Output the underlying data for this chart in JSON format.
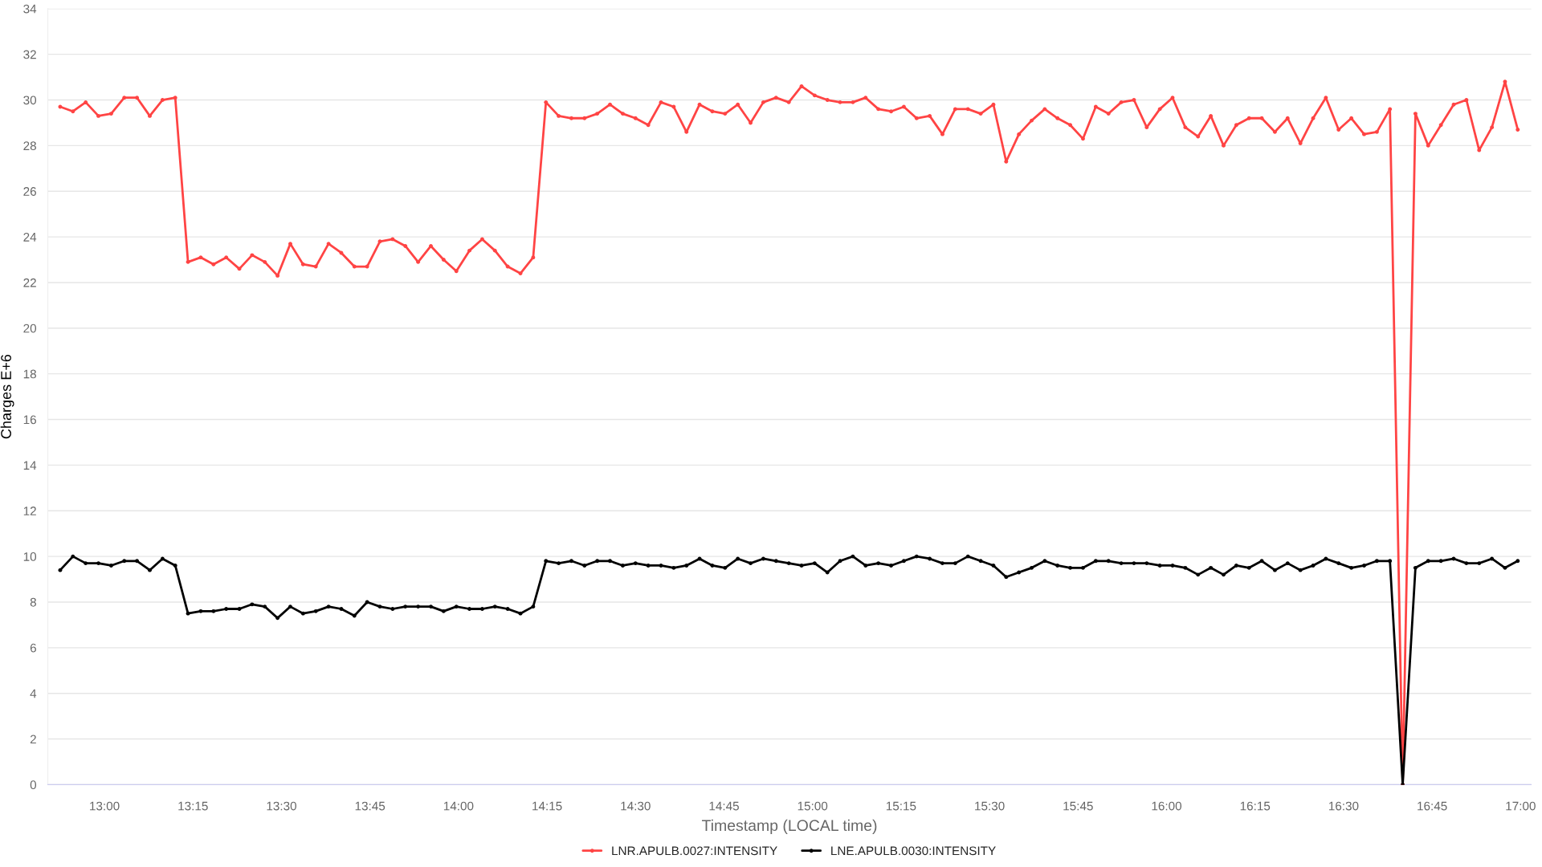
{
  "chart_data": {
    "type": "line",
    "xlabel": "Timestamp (LOCAL time)",
    "ylabel": "Charges E+6",
    "x": [
      12.875,
      12.911,
      12.947,
      12.983,
      13.019,
      13.056,
      13.092,
      13.128,
      13.164,
      13.2,
      13.236,
      13.272,
      13.308,
      13.344,
      13.381,
      13.417,
      13.453,
      13.489,
      13.525,
      13.561,
      13.597,
      13.633,
      13.669,
      13.706,
      13.742,
      13.778,
      13.814,
      13.85,
      13.886,
      13.922,
      13.958,
      13.994,
      14.031,
      14.067,
      14.103,
      14.139,
      14.175,
      14.211,
      14.247,
      14.283,
      14.319,
      14.356,
      14.392,
      14.428,
      14.464,
      14.5,
      14.536,
      14.572,
      14.608,
      14.644,
      14.681,
      14.717,
      14.753,
      14.789,
      14.825,
      14.861,
      14.897,
      14.933,
      14.969,
      15.006,
      15.042,
      15.078,
      15.114,
      15.15,
      15.186,
      15.222,
      15.258,
      15.294,
      15.331,
      15.367,
      15.403,
      15.439,
      15.475,
      15.511,
      15.547,
      15.583,
      15.619,
      15.656,
      15.692,
      15.728,
      15.764,
      15.8,
      15.836,
      15.872,
      15.908,
      15.944,
      15.981,
      16.017,
      16.053,
      16.089,
      16.125,
      16.161,
      16.197,
      16.233,
      16.269,
      16.306,
      16.342,
      16.378,
      16.414,
      16.45,
      16.486,
      16.522,
      16.558,
      16.594,
      16.631,
      16.667,
      16.703,
      16.739,
      16.775,
      16.811,
      16.847,
      16.883,
      16.919,
      16.956,
      16.992
    ],
    "series": [
      {
        "name": "LNR.APULB.0027:INTENSITY",
        "color": "#ff4444",
        "values": [
          29.7,
          29.5,
          29.9,
          29.3,
          29.4,
          30.1,
          30.1,
          29.3,
          30.0,
          30.1,
          22.9,
          23.1,
          22.8,
          23.1,
          22.6,
          23.2,
          22.9,
          22.3,
          23.7,
          22.8,
          22.7,
          23.7,
          23.3,
          22.7,
          22.7,
          23.8,
          23.9,
          23.6,
          22.9,
          23.6,
          23.0,
          22.5,
          23.4,
          23.9,
          23.4,
          22.7,
          22.4,
          23.1,
          29.9,
          29.3,
          29.2,
          29.2,
          29.4,
          29.8,
          29.4,
          29.2,
          28.9,
          29.9,
          29.7,
          28.6,
          29.8,
          29.5,
          29.4,
          29.8,
          29.0,
          29.9,
          30.1,
          29.9,
          30.6,
          30.2,
          30.0,
          29.9,
          29.9,
          30.1,
          29.6,
          29.5,
          29.7,
          29.2,
          29.3,
          28.5,
          29.6,
          29.6,
          29.4,
          29.8,
          27.3,
          28.5,
          29.1,
          29.6,
          29.2,
          28.9,
          28.3,
          29.7,
          29.4,
          29.9,
          30.0,
          28.8,
          29.6,
          30.1,
          28.8,
          28.4,
          29.3,
          28.0,
          28.9,
          29.2,
          29.2,
          28.6,
          29.2,
          28.1,
          29.2,
          30.1,
          28.7,
          29.2,
          28.5,
          28.6,
          29.6,
          0,
          29.4,
          28.0,
          28.9,
          29.8,
          30.0,
          27.8,
          28.8,
          30.8,
          28.7
        ]
      },
      {
        "name": "LNE.APULB.0030:INTENSITY",
        "color": "#000000",
        "values": [
          9.4,
          10.0,
          9.7,
          9.7,
          9.6,
          9.8,
          9.8,
          9.4,
          9.9,
          9.6,
          7.5,
          7.6,
          7.6,
          7.7,
          7.7,
          7.9,
          7.8,
          7.3,
          7.8,
          7.5,
          7.6,
          7.8,
          7.7,
          7.4,
          8.0,
          7.8,
          7.7,
          7.8,
          7.8,
          7.8,
          7.6,
          7.8,
          7.7,
          7.7,
          7.8,
          7.7,
          7.5,
          7.8,
          9.8,
          9.7,
          9.8,
          9.6,
          9.8,
          9.8,
          9.6,
          9.7,
          9.6,
          9.6,
          9.5,
          9.6,
          9.9,
          9.6,
          9.5,
          9.9,
          9.7,
          9.9,
          9.8,
          9.7,
          9.6,
          9.7,
          9.3,
          9.8,
          10.0,
          9.6,
          9.7,
          9.6,
          9.8,
          10.0,
          9.9,
          9.7,
          9.7,
          10.0,
          9.8,
          9.6,
          9.1,
          9.3,
          9.5,
          9.8,
          9.6,
          9.5,
          9.5,
          9.8,
          9.8,
          9.7,
          9.7,
          9.7,
          9.6,
          9.6,
          9.5,
          9.2,
          9.5,
          9.2,
          9.6,
          9.5,
          9.8,
          9.4,
          9.7,
          9.4,
          9.6,
          9.9,
          9.7,
          9.5,
          9.6,
          9.8,
          9.8,
          0,
          9.5,
          9.8,
          9.8,
          9.9,
          9.7,
          9.7,
          9.9,
          9.5,
          9.8
        ]
      }
    ],
    "xlim": [
      12.84,
      17.03
    ],
    "xticks": [
      {
        "value": 13,
        "label": "13:00"
      },
      {
        "value": 13.25,
        "label": "13:15"
      },
      {
        "value": 13.5,
        "label": "13:30"
      },
      {
        "value": 13.75,
        "label": "13:45"
      },
      {
        "value": 14,
        "label": "14:00"
      },
      {
        "value": 14.25,
        "label": "14:15"
      },
      {
        "value": 14.5,
        "label": "14:30"
      },
      {
        "value": 14.75,
        "label": "14:45"
      },
      {
        "value": 15,
        "label": "15:00"
      },
      {
        "value": 15.25,
        "label": "15:15"
      },
      {
        "value": 15.5,
        "label": "15:30"
      },
      {
        "value": 15.75,
        "label": "15:45"
      },
      {
        "value": 16,
        "label": "16:00"
      },
      {
        "value": 16.25,
        "label": "16:15"
      },
      {
        "value": 16.5,
        "label": "16:30"
      },
      {
        "value": 16.75,
        "label": "16:45"
      },
      {
        "value": 17,
        "label": "17:00"
      }
    ],
    "ylim": [
      0,
      34
    ],
    "yticks": [
      0,
      2,
      4,
      6,
      8,
      10,
      12,
      14,
      16,
      18,
      20,
      22,
      24,
      26,
      28,
      30,
      32,
      34
    ],
    "grid": "y",
    "legend": "bottom",
    "marker": "circle",
    "line_style": "solid"
  }
}
